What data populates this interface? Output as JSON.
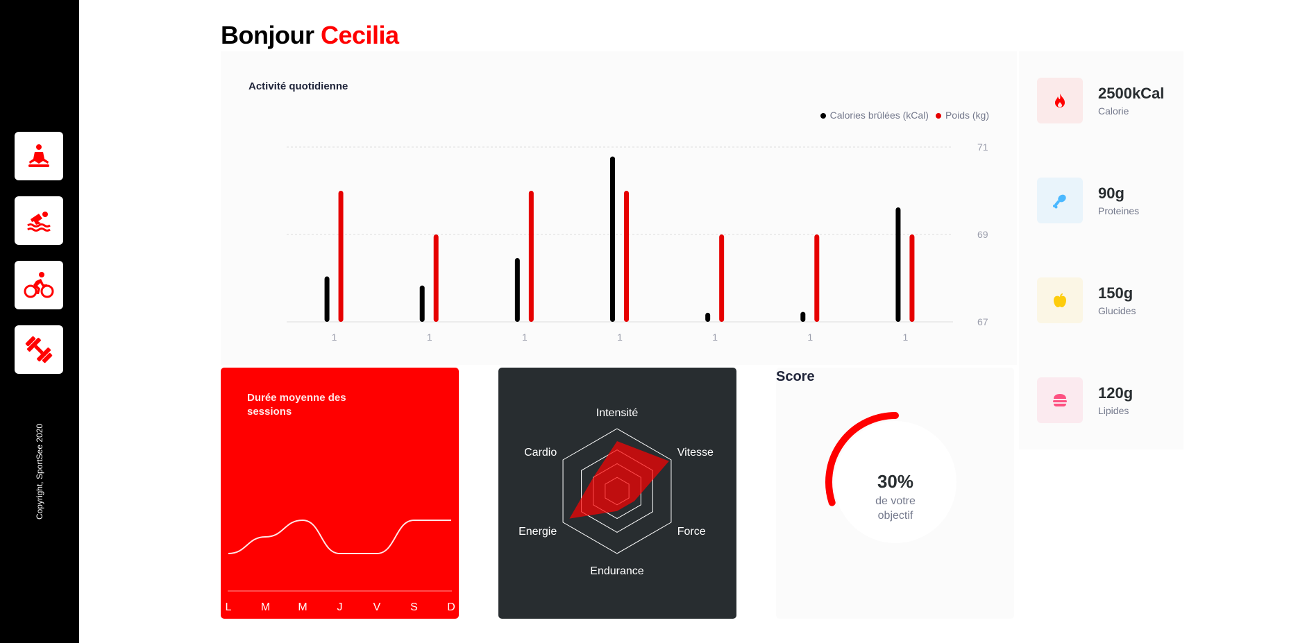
{
  "greeting": {
    "prefix": "Bonjour ",
    "name": "Cecilia"
  },
  "sidebar": {
    "items": [
      {
        "icon": "yoga-icon"
      },
      {
        "icon": "swimming-icon"
      },
      {
        "icon": "cycling-icon"
      },
      {
        "icon": "dumbbell-icon"
      }
    ],
    "copyright": "Copyright, SportSee 2020"
  },
  "activity": {
    "title": "Activité quotidienne",
    "legend": {
      "calories": "Calories brûlées (kCal)",
      "weight": "Poids (kg)"
    },
    "colors": {
      "calories": "#000000",
      "weight": "#e60000"
    }
  },
  "chart_data": [
    {
      "type": "bar",
      "title": "Activité quotidienne",
      "categories": [
        "1",
        "1",
        "1",
        "1",
        "1",
        "1",
        "1"
      ],
      "series": [
        {
          "name": "Calories brûlées (kCal)",
          "values": [
            260,
            208,
            365,
            946,
            52,
            57,
            655
          ]
        },
        {
          "name": "Poids (kg)",
          "values": [
            70,
            69,
            70,
            70,
            69,
            69,
            69
          ]
        }
      ],
      "ylim": [
        67,
        71
      ],
      "yticks": [
        "71",
        "69",
        "67"
      ],
      "calorie_max": 1000,
      "grid": true,
      "legend": "top-right"
    },
    {
      "type": "line",
      "title": "Durée moyenne des sessions",
      "categories": [
        "L",
        "M",
        "M",
        "J",
        "V",
        "S",
        "D"
      ],
      "values": [
        30,
        40,
        50,
        30,
        30,
        50,
        50
      ]
    },
    {
      "type": "radar",
      "categories": [
        "Intensité",
        "Vitesse",
        "Force",
        "Endurance",
        "Energie",
        "Cardio"
      ],
      "values": [
        200,
        240,
        80,
        80,
        220,
        110
      ],
      "max": 250
    },
    {
      "type": "pie",
      "title": "Score",
      "value": 0.3,
      "value_label": "30%",
      "caption_line1": "de votre",
      "caption_line2": "objectif"
    }
  ],
  "nutrition": [
    {
      "value": "2500kCal",
      "label": "Calorie",
      "icon": "fire-icon",
      "color": "#ff0000",
      "bg": "#fbeaea"
    },
    {
      "value": "90g",
      "label": "Proteines",
      "icon": "chicken-leg-icon",
      "color": "#4ab8ff",
      "bg": "#e9f4fb"
    },
    {
      "value": "150g",
      "label": "Glucides",
      "icon": "apple-icon",
      "color": "#fdcc0c",
      "bg": "#fbf6e5"
    },
    {
      "value": "120g",
      "label": "Lipides",
      "icon": "burger-icon",
      "color": "#fd5181",
      "bg": "#fbeaef"
    }
  ]
}
